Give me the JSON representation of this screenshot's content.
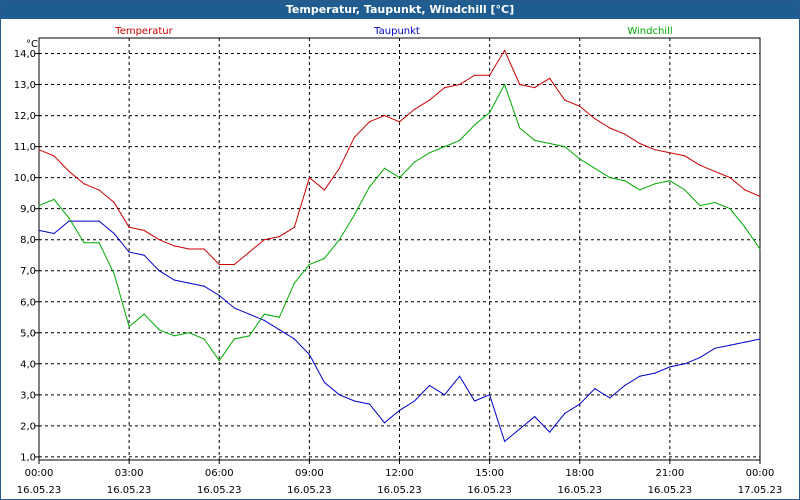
{
  "window": {
    "title": "Temperatur, Taupunkt, Windchill [°C]"
  },
  "chart_data": {
    "type": "line",
    "title": "Temperatur, Taupunkt, Windchill [°C]",
    "ylabel": "°C",
    "ylim": [
      0.9,
      14.5
    ],
    "xlim": [
      0,
      24
    ],
    "y_ticks": [
      "1,0",
      "2,0",
      "3,0",
      "4,0",
      "5,0",
      "6,0",
      "7,0",
      "8,0",
      "9,0",
      "10,0",
      "11,0",
      "12,0",
      "13,0",
      "14,0"
    ],
    "x_ticks": [
      {
        "time": "00:00",
        "date": "16.05.23"
      },
      {
        "time": "03:00",
        "date": "16.05.23"
      },
      {
        "time": "06:00",
        "date": "16.05.23"
      },
      {
        "time": "09:00",
        "date": "16.05.23"
      },
      {
        "time": "12:00",
        "date": "16.05.23"
      },
      {
        "time": "15:00",
        "date": "16.05.23"
      },
      {
        "time": "18:00",
        "date": "16.05.23"
      },
      {
        "time": "21:00",
        "date": "16.05.23"
      },
      {
        "time": "00:00",
        "date": "17.05.23"
      }
    ],
    "grid": true,
    "x_hours": [
      0,
      0.5,
      1,
      1.5,
      2,
      2.5,
      3,
      3.5,
      4,
      4.5,
      5,
      5.5,
      6,
      6.5,
      7,
      7.5,
      8,
      8.5,
      9,
      9.5,
      10,
      10.5,
      11,
      11.5,
      12,
      12.5,
      13,
      13.5,
      14,
      14.5,
      15,
      15.5,
      16,
      16.5,
      17,
      17.5,
      18,
      18.5,
      19,
      19.5,
      20,
      20.5,
      21,
      21.5,
      22,
      22.5,
      23,
      23.5,
      24
    ],
    "series": [
      {
        "name": "Temperatur",
        "color": "#cc0000",
        "values": [
          10.9,
          10.7,
          10.2,
          9.8,
          9.6,
          9.2,
          8.4,
          8.3,
          8.0,
          7.8,
          7.7,
          7.7,
          7.2,
          7.2,
          7.6,
          8.0,
          8.1,
          8.4,
          10.0,
          9.6,
          10.3,
          11.3,
          11.8,
          12.0,
          11.8,
          12.2,
          12.5,
          12.9,
          13.0,
          13.3,
          13.3,
          14.1,
          13.0,
          12.9,
          13.2,
          12.5,
          12.3,
          11.9,
          11.6,
          11.4,
          11.1,
          10.9,
          10.8,
          10.7,
          10.4,
          10.2,
          10.0,
          9.6,
          9.4
        ]
      },
      {
        "name": "Taupunkt",
        "color": "#0000cc",
        "values": [
          8.3,
          8.2,
          8.6,
          8.6,
          8.6,
          8.2,
          7.6,
          7.5,
          7.0,
          6.7,
          6.6,
          6.5,
          6.2,
          5.8,
          5.6,
          5.4,
          5.1,
          4.8,
          4.3,
          3.4,
          3.0,
          2.8,
          2.7,
          2.1,
          2.5,
          2.8,
          3.3,
          3.0,
          3.6,
          2.8,
          3.0,
          1.5,
          1.9,
          2.3,
          1.8,
          2.4,
          2.7,
          3.2,
          2.9,
          3.3,
          3.6,
          3.7,
          3.9,
          4.0,
          4.2,
          4.5,
          4.6,
          4.7,
          4.8
        ]
      },
      {
        "name": "Windchill",
        "color": "#00aa00",
        "values": [
          9.1,
          9.3,
          8.7,
          7.9,
          7.9,
          6.9,
          5.2,
          5.6,
          5.1,
          4.9,
          5.0,
          4.8,
          4.1,
          4.8,
          4.9,
          5.6,
          5.5,
          6.6,
          7.2,
          7.4,
          8.0,
          8.8,
          9.7,
          10.3,
          10.0,
          10.5,
          10.8,
          11.0,
          11.2,
          11.7,
          12.1,
          13.0,
          11.6,
          11.2,
          11.1,
          11.0,
          10.6,
          10.3,
          10.0,
          9.9,
          9.6,
          9.8,
          9.9,
          9.6,
          9.1,
          9.2,
          9.0,
          8.4,
          7.7
        ]
      }
    ]
  }
}
